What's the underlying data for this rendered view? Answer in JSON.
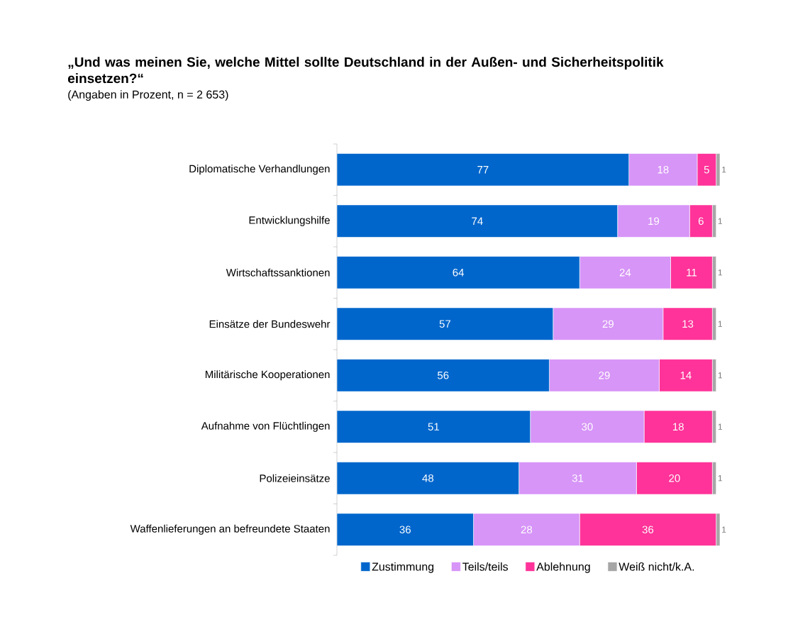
{
  "chart_data": {
    "type": "bar",
    "orientation": "horizontal",
    "stacked": true,
    "data_labels": true,
    "legend": "bottom",
    "title": "„Und was meinen Sie, welche Mittel sollte Deutschland in der Außen- und Sicherheitspolitik einsetzen?“",
    "subtitle": "(Angaben in Prozent, n = 2 653)",
    "categories": [
      "Diplomatische Verhandlungen",
      "Entwicklungshilfe",
      "Wirtschaftssanktionen",
      "Einsätze der Bundeswehr",
      "Militärische Kooperationen",
      "Aufnahme von Flüchtlingen",
      "Polizeieinsätze",
      "Waffenlieferungen an befreundete Staaten"
    ],
    "series": [
      {
        "name": "Zustimmung",
        "color": "#0066cc",
        "values": [
          77,
          74,
          64,
          57,
          56,
          51,
          48,
          36
        ]
      },
      {
        "name": "Teils/teils",
        "color": "#d795f7",
        "values": [
          18,
          19,
          24,
          29,
          29,
          30,
          31,
          28
        ]
      },
      {
        "name": "Ablehnung",
        "color": "#ff3399",
        "values": [
          5,
          6,
          11,
          13,
          14,
          18,
          20,
          36
        ]
      },
      {
        "name": "Weiß nicht/k.A.",
        "color": "#a6a6a6",
        "values": [
          1,
          1,
          1,
          1,
          1,
          1,
          1,
          1
        ]
      }
    ]
  }
}
